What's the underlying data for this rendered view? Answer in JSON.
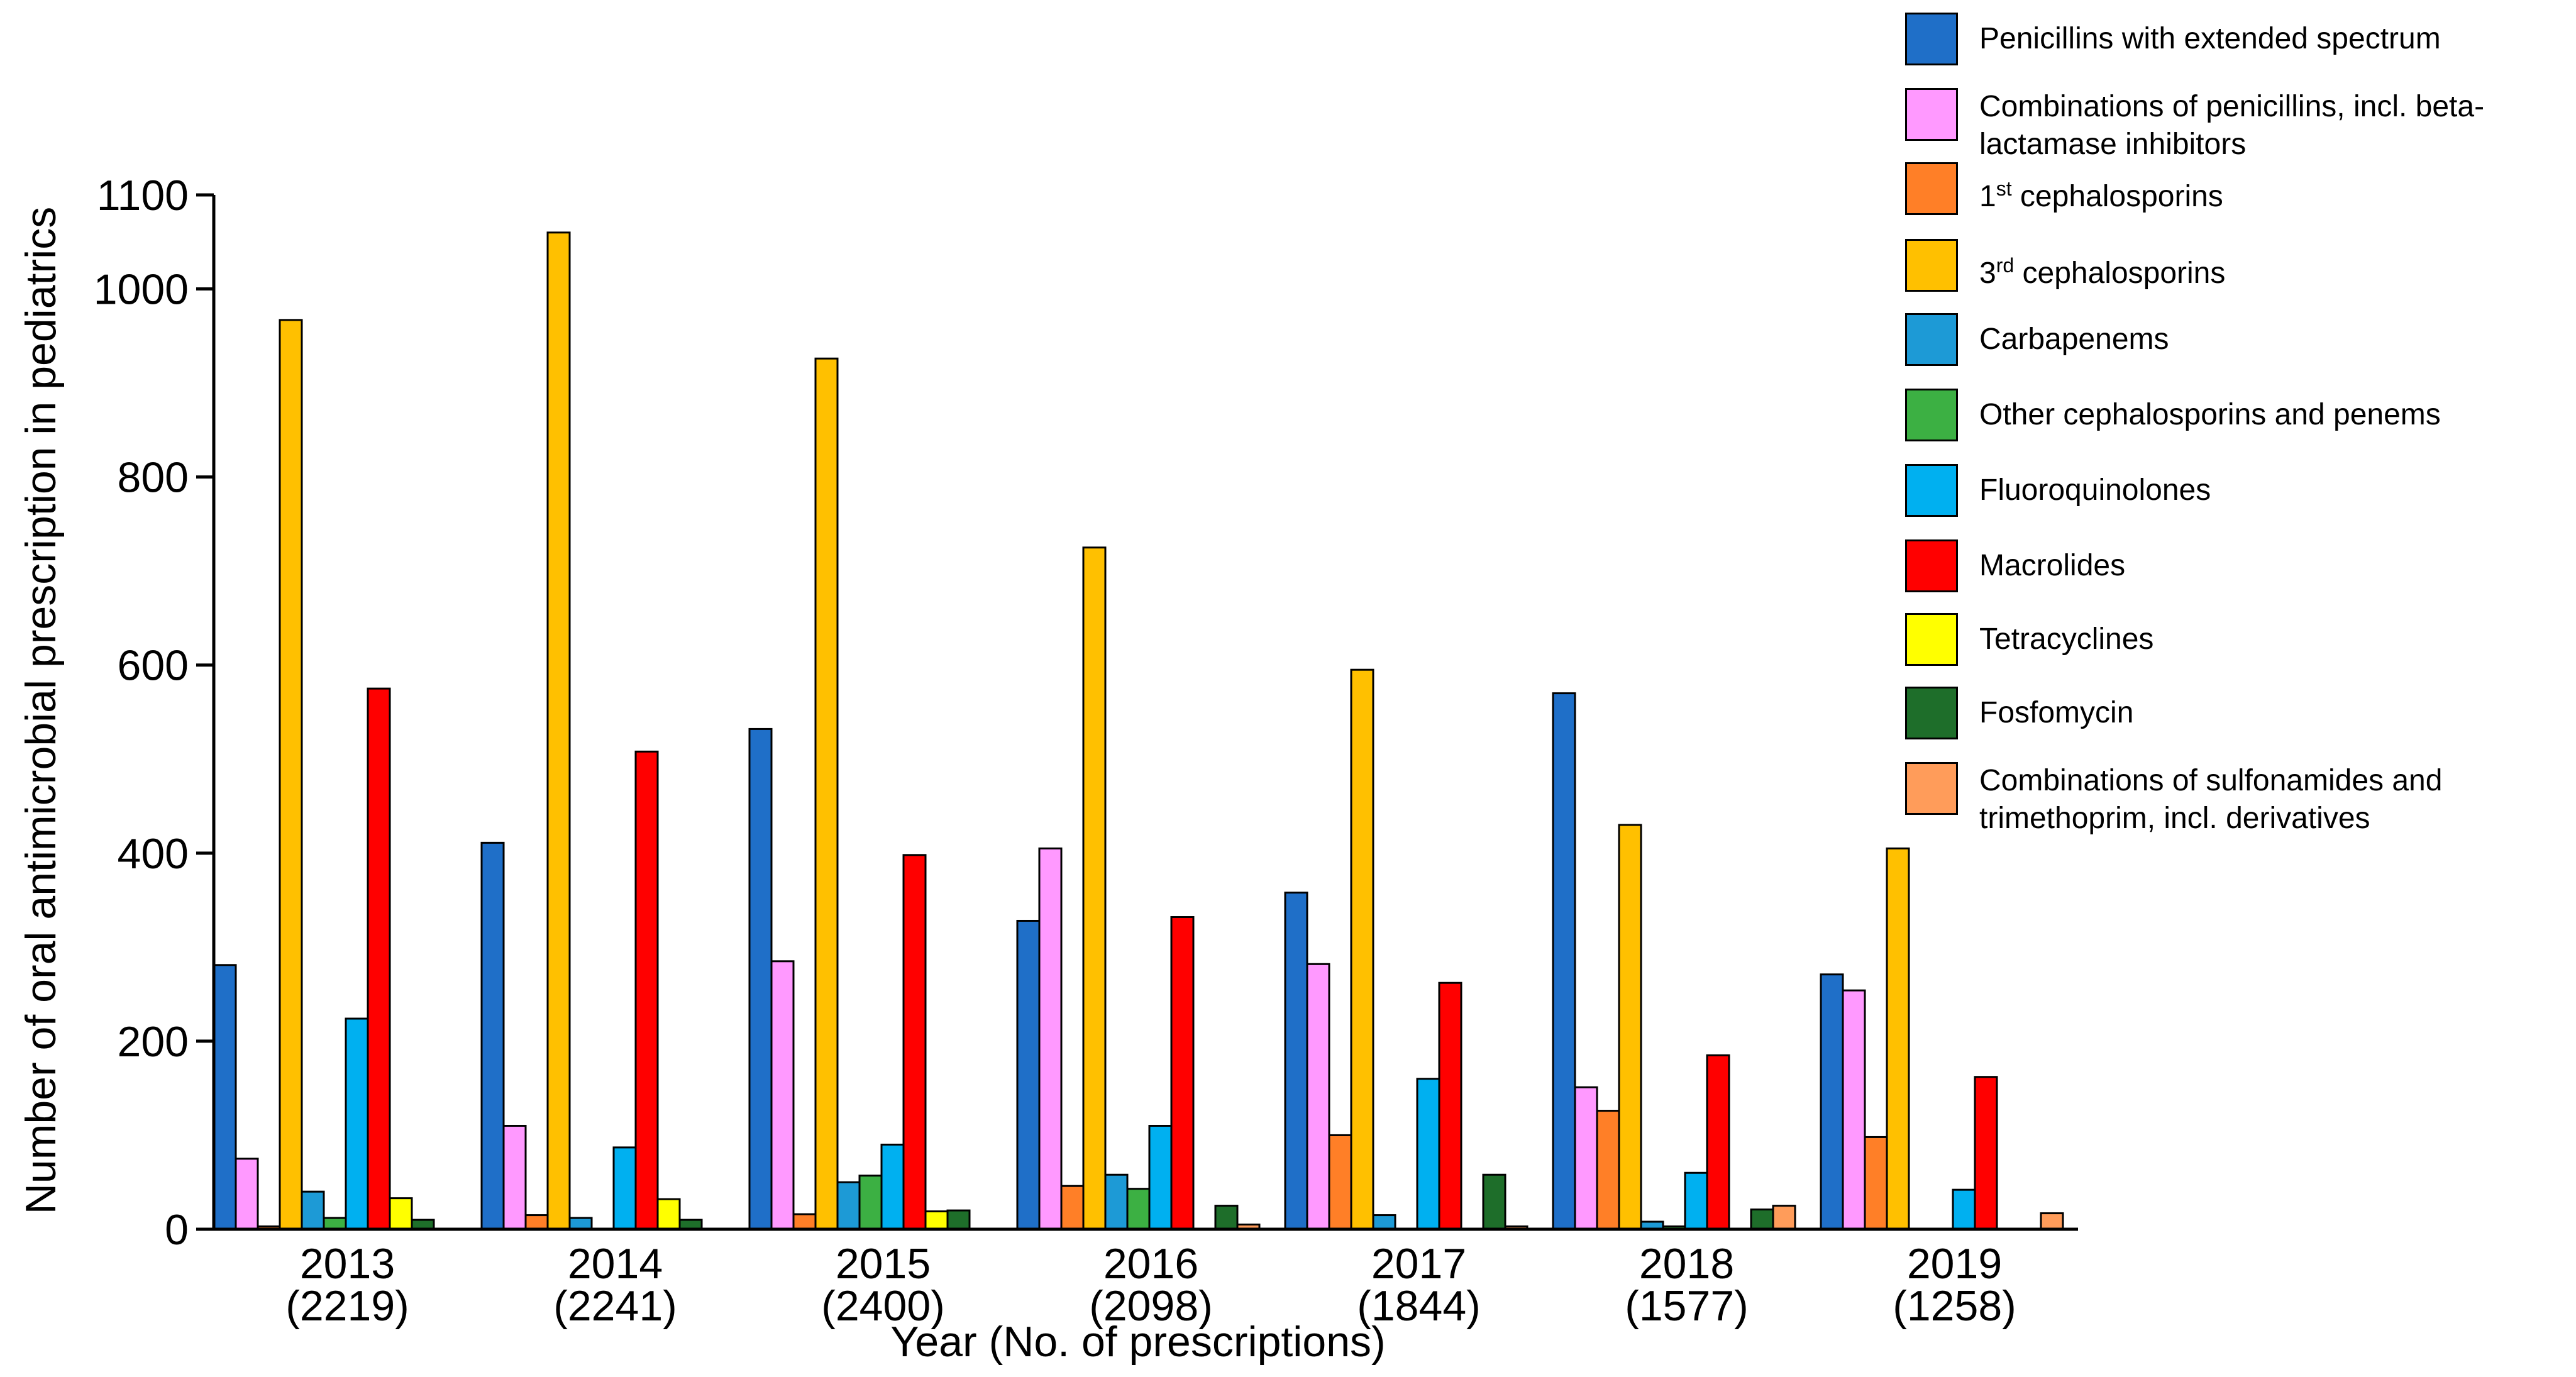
{
  "chart_data": {
    "type": "bar",
    "title": "",
    "xlabel": "Year (No. of prescriptions)",
    "ylabel": "Number of oral antimicrobial prescription in pediatrics",
    "ylim": [
      0,
      1100
    ],
    "y_ticks": [
      "0",
      "200",
      "400",
      "600",
      "800",
      "1000",
      "1100"
    ],
    "categories": [
      {
        "year": "2013",
        "count": "(2219)"
      },
      {
        "year": "2014",
        "count": "(2241)"
      },
      {
        "year": "2015",
        "count": "(2400)"
      },
      {
        "year": "2016",
        "count": "(2098)"
      },
      {
        "year": "2017",
        "count": "(1844)"
      },
      {
        "year": "2018",
        "count": "(1577)"
      },
      {
        "year": "2019",
        "count": "(1258)"
      }
    ],
    "series": [
      {
        "name": "Penicillins with extended spectrum",
        "color": "#1f6fc8",
        "values": [
          281,
          411,
          532,
          328,
          358,
          570,
          271
        ]
      },
      {
        "name": "Combinations of penicillins, incl. beta-lactamase inhibitors",
        "color": "#ff99ff",
        "values": [
          75,
          110,
          285,
          405,
          282,
          151,
          254
        ]
      },
      {
        "name": "1st cephalosporins",
        "sup": "st",
        "base": "1",
        "rest": " cephalosporins",
        "color": "#ff7f27",
        "values": [
          3,
          15,
          16,
          46,
          100,
          126,
          98
        ]
      },
      {
        "name": "3rd cephalosporins",
        "sup": "rd",
        "base": "3",
        "rest": " cephalosporins",
        "color": "#ffc000",
        "values": [
          967,
          1060,
          926,
          725,
          595,
          430,
          405
        ]
      },
      {
        "name": "Carbapenems",
        "color": "#1d9ad6",
        "values": [
          40,
          12,
          50,
          58,
          15,
          8,
          0
        ]
      },
      {
        "name": "Other cephalosporins and penems",
        "color": "#3cb043",
        "values": [
          12,
          0,
          57,
          43,
          0,
          3,
          0
        ]
      },
      {
        "name": "Fluoroquinolones",
        "color": "#00b0f0",
        "values": [
          224,
          87,
          90,
          110,
          160,
          60,
          42
        ]
      },
      {
        "name": "Macrolides",
        "color": "#ff0000",
        "values": [
          575,
          508,
          398,
          332,
          262,
          185,
          162
        ]
      },
      {
        "name": "Tetracyclines",
        "color": "#ffff00",
        "values": [
          33,
          32,
          19,
          0,
          0,
          0,
          0
        ]
      },
      {
        "name": "Fosfomycin",
        "color": "#1e6e2a",
        "values": [
          10,
          10,
          20,
          25,
          58,
          21,
          0
        ]
      },
      {
        "name": "Combinations of sulfonamides and trimethoprim, incl. derivatives",
        "color": "#ff9c5a",
        "values": [
          0,
          0,
          0,
          5,
          3,
          25,
          17
        ]
      }
    ]
  }
}
